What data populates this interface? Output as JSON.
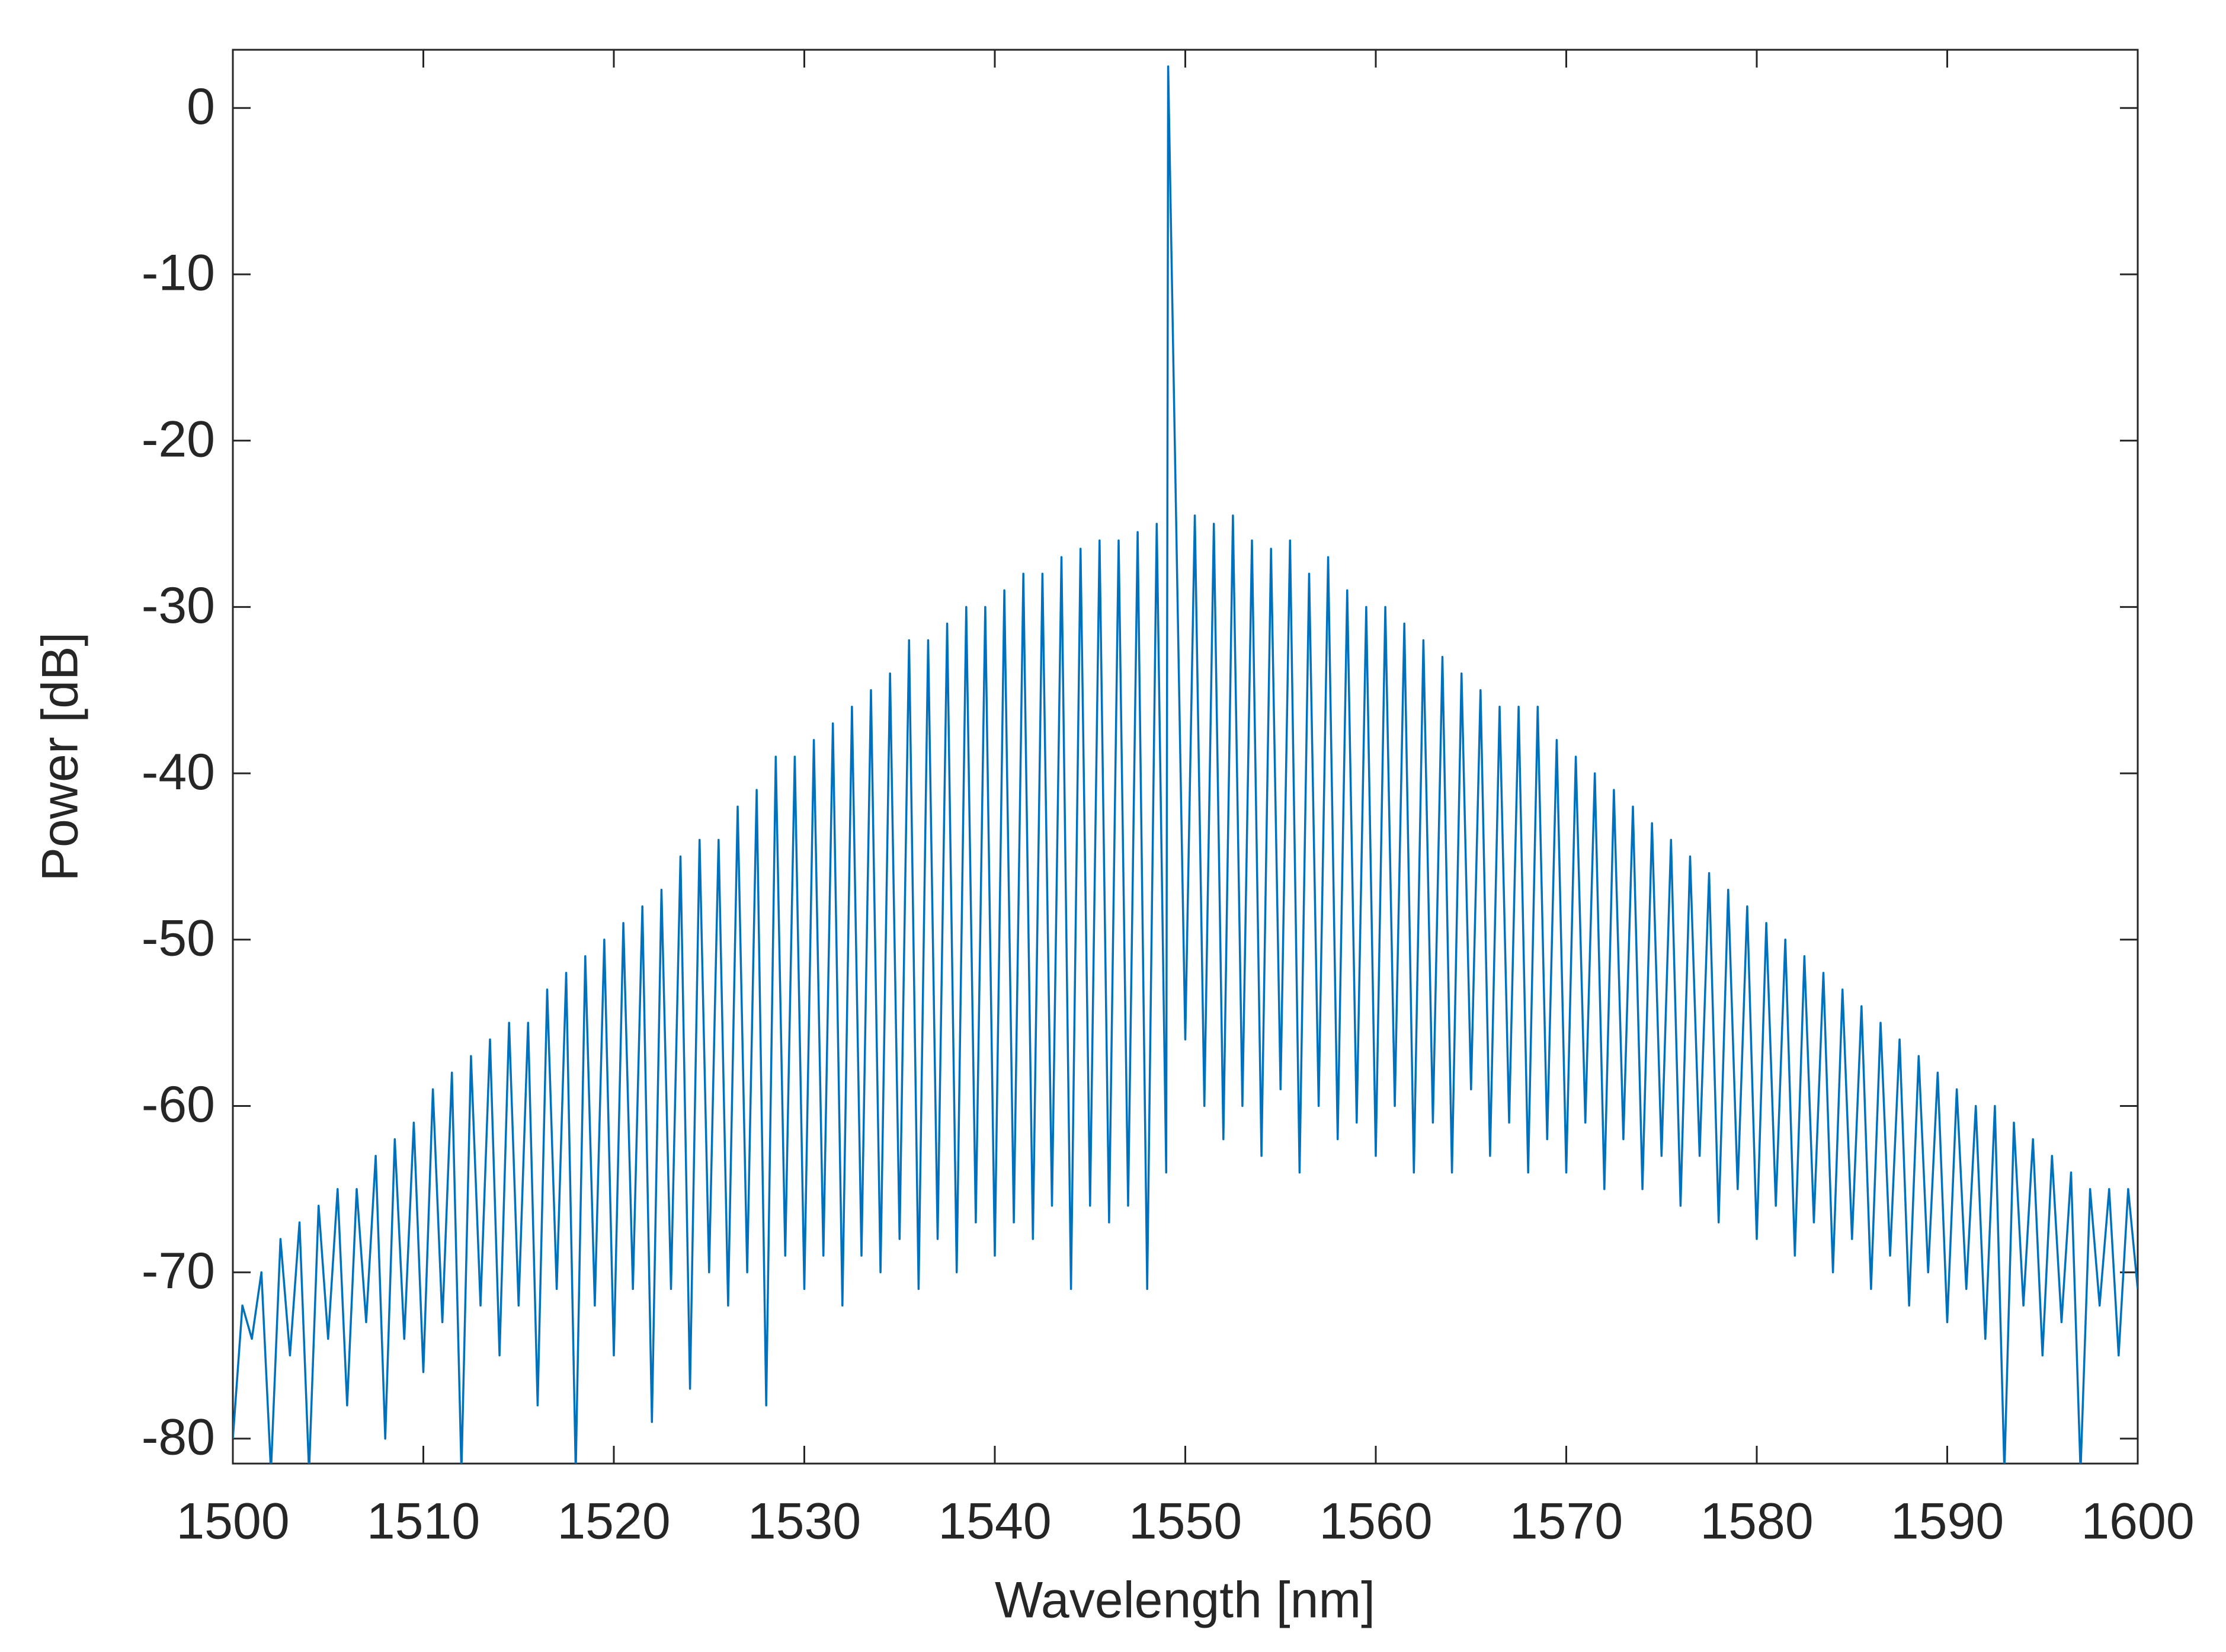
{
  "chart_data": {
    "type": "line",
    "xlabel": "Wavelength [nm]",
    "ylabel": "Power [dB]",
    "color": "#0072bd",
    "xlim": [
      1500,
      1600
    ],
    "xticks": [
      1500,
      1510,
      1520,
      1530,
      1540,
      1550,
      1560,
      1570,
      1580,
      1590,
      1600
    ],
    "ylim": [
      -81.5,
      3.5
    ],
    "yticks": [
      -80,
      -70,
      -60,
      -50,
      -40,
      -30,
      -20,
      -10,
      0
    ],
    "x": [
      1500,
      1500.5,
      1501,
      1501.5,
      1502,
      1502.5,
      1503,
      1503.5,
      1504,
      1504.5,
      1505,
      1505.5,
      1506,
      1506.5,
      1507,
      1507.5,
      1508,
      1508.5,
      1509,
      1509.5,
      1510,
      1510.5,
      1511,
      1511.5,
      1512,
      1512.5,
      1513,
      1513.5,
      1514,
      1514.5,
      1515,
      1515.5,
      1516,
      1516.5,
      1517,
      1517.5,
      1518,
      1518.5,
      1519,
      1519.5,
      1520,
      1520.5,
      1521,
      1521.5,
      1522,
      1522.5,
      1523,
      1523.5,
      1524,
      1524.5,
      1525,
      1525.5,
      1526,
      1526.5,
      1527,
      1527.5,
      1528,
      1528.5,
      1529,
      1529.5,
      1530,
      1530.5,
      1531,
      1531.5,
      1532,
      1532.5,
      1533,
      1533.5,
      1534,
      1534.5,
      1535,
      1535.5,
      1536,
      1536.5,
      1537,
      1537.5,
      1538,
      1538.5,
      1539,
      1539.5,
      1540,
      1540.5,
      1541,
      1541.5,
      1542,
      1542.5,
      1543,
      1543.5,
      1544,
      1544.5,
      1545,
      1545.5,
      1546,
      1546.5,
      1547,
      1547.5,
      1548,
      1548.5,
      1549,
      1549.1,
      1550,
      1550.5,
      1551,
      1551.5,
      1552,
      1552.5,
      1553,
      1553.5,
      1554,
      1554.5,
      1555,
      1555.5,
      1556,
      1556.5,
      1557,
      1557.5,
      1558,
      1558.5,
      1559,
      1559.5,
      1560,
      1560.5,
      1561,
      1561.5,
      1562,
      1562.5,
      1563,
      1563.5,
      1564,
      1564.5,
      1565,
      1565.5,
      1566,
      1566.5,
      1567,
      1567.5,
      1568,
      1568.5,
      1569,
      1569.5,
      1570,
      1570.5,
      1571,
      1571.5,
      1572,
      1572.5,
      1573,
      1573.5,
      1574,
      1574.5,
      1575,
      1575.5,
      1576,
      1576.5,
      1577,
      1577.5,
      1578,
      1578.5,
      1579,
      1579.5,
      1580,
      1580.5,
      1581,
      1581.5,
      1582,
      1582.5,
      1583,
      1583.5,
      1584,
      1584.5,
      1585,
      1585.5,
      1586,
      1586.5,
      1587,
      1587.5,
      1588,
      1588.5,
      1589,
      1589.5,
      1590,
      1590.5,
      1591,
      1591.5,
      1592,
      1592.5,
      1593,
      1593.5,
      1594,
      1594.5,
      1595,
      1595.5,
      1596,
      1596.5,
      1597,
      1597.5,
      1598,
      1598.5,
      1599,
      1599.5,
      1600
    ],
    "values": [
      -80,
      -72,
      -74,
      -70,
      -82,
      -68,
      -75,
      -67,
      -82,
      -66,
      -74,
      -65,
      -78,
      -65,
      -73,
      -63,
      -80,
      -62,
      -74,
      -61,
      -76,
      -59,
      -73,
      -58,
      -82,
      -57,
      -72,
      -56,
      -75,
      -55,
      -72,
      -55,
      -78,
      -53,
      -71,
      -52,
      -82,
      -51,
      -72,
      -50,
      -75,
      -49,
      -71,
      -48,
      -79,
      -47,
      -71,
      -45,
      -77,
      -44,
      -70,
      -44,
      -72,
      -42,
      -70,
      -41,
      -78,
      -39,
      -69,
      -39,
      -71,
      -38,
      -69,
      -37,
      -72,
      -36,
      -69,
      -35,
      -70,
      -34,
      -68,
      -32,
      -71,
      -32,
      -68,
      -31,
      -70,
      -30,
      -67,
      -30,
      -69,
      -29,
      -67,
      -28,
      -68,
      -28,
      -66,
      -27,
      -71,
      -26.5,
      -66,
      -26,
      -67,
      -26,
      -66,
      -25.5,
      -71,
      -25,
      -64,
      2.5,
      -56,
      -24.5,
      -60,
      -25,
      -62,
      -24.5,
      -60,
      -26,
      -63,
      -26.5,
      -59,
      -26,
      -64,
      -28,
      -60,
      -27,
      -62,
      -29,
      -61,
      -30,
      -63,
      -30,
      -60,
      -31,
      -64,
      -32,
      -61,
      -33,
      -64,
      -34,
      -59,
      -35,
      -63,
      -36,
      -61,
      -36,
      -64,
      -36,
      -62,
      -38,
      -64,
      -39,
      -61,
      -40,
      -65,
      -41,
      -62,
      -42,
      -65,
      -43,
      -63,
      -44,
      -66,
      -45,
      -63,
      -46,
      -67,
      -47,
      -65,
      -48,
      -68,
      -49,
      -66,
      -50,
      -69,
      -51,
      -67,
      -52,
      -70,
      -53,
      -68,
      -54,
      -71,
      -55,
      -69,
      -56,
      -72,
      -57,
      -70,
      -58,
      -73,
      -59,
      -71,
      -60,
      -74,
      -60,
      -82,
      -61,
      -72,
      -62,
      -75,
      -63,
      -73,
      -64,
      -82,
      -65,
      -72,
      -65,
      -75,
      -65,
      -71
    ]
  }
}
